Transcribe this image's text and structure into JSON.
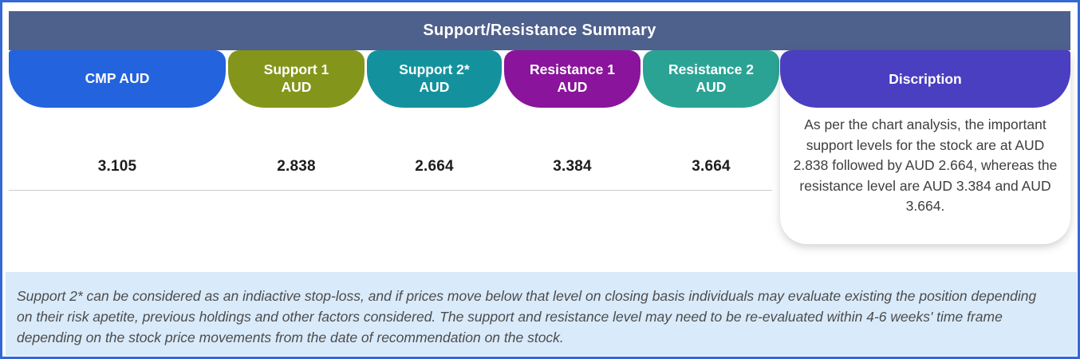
{
  "title": "Support/Resistance Summary",
  "columns": [
    {
      "label": "CMP AUD",
      "value": "3.105"
    },
    {
      "label": "Support 1\nAUD",
      "value": "2.838"
    },
    {
      "label": "Support 2*\nAUD",
      "value": "2.664"
    },
    {
      "label": "Resistance 1\nAUD",
      "value": "3.384"
    },
    {
      "label": "Resistance 2\nAUD",
      "value": "3.664"
    }
  ],
  "description": {
    "header": "Discription",
    "body": "As per the chart analysis, the important support levels for the stock are at AUD 2.838 followed by AUD 2.664, whereas the resistance level are AUD 3.384 and AUD 3.664."
  },
  "footnote": "Support 2* can be considered as an indiactive stop-loss, and if prices move below that level on closing basis individuals may evaluate existing the position depending on their risk apetite, previous holdings and other factors considered. The support and resistance level may need to be re-evaluated within 4-6 weeks' time frame depending on the stock price movements from  the date of recommendation on the stock.",
  "colors": {
    "frame_border": "#3468d4",
    "title_bar_bg": "#4e608c",
    "cmp_bg": "#2363dd",
    "support1_bg": "#83961b",
    "support2_bg": "#13929e",
    "resistance1_bg": "#8a149b",
    "resistance2_bg": "#2aa394",
    "description_header_bg": "#4a3ec1",
    "footnote_bg": "#d9eafa",
    "value_text": "#1d1d1d"
  },
  "table": {
    "headers": [
      "CMP AUD",
      "Support 1 AUD",
      "Support 2* AUD",
      "Resistance 1 AUD",
      "Resistance 2 AUD",
      "Discription"
    ],
    "row": [
      "3.105",
      "2.838",
      "2.664",
      "3.384",
      "3.664",
      "As per the chart analysis, the important support levels for the stock are at AUD 2.838 followed by AUD 2.664, whereas the resistance level are AUD 3.384 and AUD 3.664."
    ]
  }
}
